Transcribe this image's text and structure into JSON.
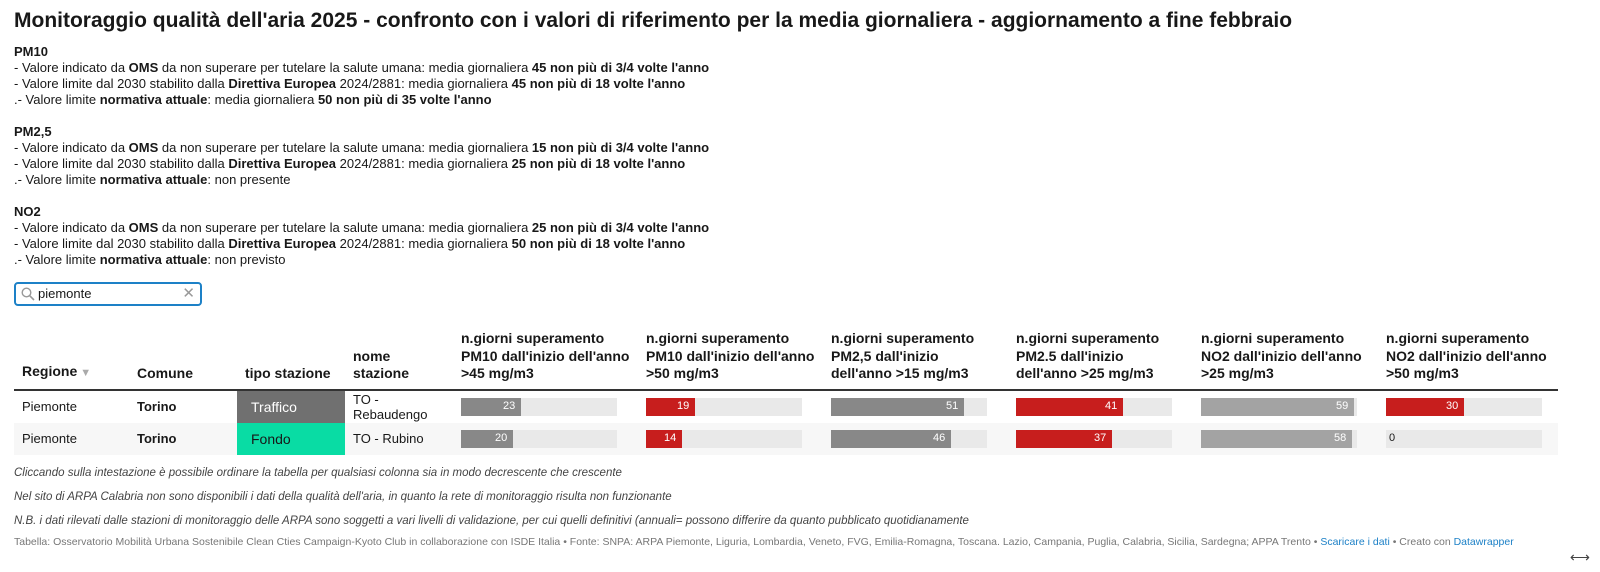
{
  "title": "Monitoraggio qualità dell'aria 2025 - confronto con i valori di riferimento per la media giornaliera - aggiornamento a fine febbraio",
  "intro": [
    {
      "heading": "PM10",
      "lines": [
        {
          "pre": "- Valore indicato da ",
          "b1": "OMS",
          "mid": " da non superare per tutelare la salute umana: media giornaliera ",
          "b2": "45 non più di 3/4 volte l'anno"
        },
        {
          "pre": "- Valore limite dal 2030 stabilito dalla ",
          "b1": "Direttiva Europea",
          "mid": " 2024/2881: media giornaliera ",
          "b2": "45 non più di 18 volte l'anno"
        },
        {
          "pre": ".- Valore limite ",
          "b1": "normativa attuale",
          "mid": ": media giornaliera ",
          "b2": "50 non più di 35 volte l'anno"
        }
      ]
    },
    {
      "heading": "PM2,5",
      "lines": [
        {
          "pre": "- Valore indicato da ",
          "b1": "OMS",
          "mid": " da non superare per tutelare la salute umana: media giornaliera ",
          "b2": "15 non più di 3/4 volte l'anno"
        },
        {
          "pre": "- Valore limite dal 2030 stabilito dalla ",
          "b1": "Direttiva Europea",
          "mid": " 2024/2881: media giornaliera ",
          "b2": "25 non più di 18 volte l'anno"
        },
        {
          "pre": ".- Valore limite ",
          "b1": "normativa attuale",
          "mid": ": non presente",
          "b2": ""
        }
      ]
    },
    {
      "heading": "NO2",
      "lines": [
        {
          "pre": "- Valore indicato da ",
          "b1": "OMS",
          "mid": " da non superare per tutelare la salute umana: media giornaliera ",
          "b2": "25 non più di 3/4 volte l'anno"
        },
        {
          "pre": "- Valore limite dal 2030 stabilito dalla ",
          "b1": "Direttiva Europea",
          "mid": " 2024/2881: media giornaliera ",
          "b2": "50 non più di 18 volte l'anno"
        },
        {
          "pre": ".- Valore limite ",
          "b1": "normativa attuale",
          "mid": ": non previsto",
          "b2": ""
        }
      ]
    }
  ],
  "search": {
    "value": "piemonte",
    "icon": "search-icon",
    "clear_icon": "close-icon"
  },
  "table": {
    "headers": [
      "Regione",
      "Comune",
      "tipo stazione",
      "nome stazione",
      "n.giorni superamento PM10 dall'inizio dell'anno >45 mg/m3",
      "n.giorni superamento PM10 dall'inizio dell'anno >50 mg/m3",
      "n.giorni superamento PM2,5 dall'inizio dell'anno >15 mg/m3",
      "n.giorni superamento PM2.5 dall'inizio dell'anno >25 mg/m3",
      "n.giorni superamento NO2 dall'inizio dell'anno >25 mg/m3",
      "n.giorni superamento NO2 dall'inizio dell'anno >50 mg/m3"
    ],
    "sort_icon": "sort-down-icon",
    "bar_max": 60,
    "bar_colors": [
      "#888888",
      "#c71e1d",
      "#888888",
      "#c71e1d",
      "#a3a3a3",
      "#c71e1d"
    ],
    "rows": [
      {
        "regione": "Piemonte",
        "comune": "Torino",
        "tipo": "Traffico",
        "tipo_color": "#707070",
        "nome": "TO - Rebaudengo",
        "values": [
          23,
          19,
          51,
          41,
          59,
          30
        ]
      },
      {
        "regione": "Piemonte",
        "comune": "Torino",
        "tipo": "Fondo",
        "tipo_color": "#09dca4",
        "nome": "TO - Rubino",
        "values": [
          20,
          14,
          46,
          37,
          58,
          0
        ]
      }
    ]
  },
  "notes": [
    "Cliccando sulla intestazione è possibile ordinare la tabella per qualsiasi colonna sia in modo decrescente che crescente",
    "Nel sito di ARPA Calabria non sono disponibili i dati della qualità dell'aria, in quanto la rete di monitoraggio risulta non funzionante",
    "N.B. i dati rilevati dalle stazioni di monitoraggio delle ARPA sono soggetti a vari livelli di validazione, per cui quelli definitivi (annuali= possono differire da quanto pubblicato quotidianamente"
  ],
  "footer": {
    "source": "Tabella: Osservatorio Mobilità Urbana Sostenibile Clean Cties Campaign-Kyoto Club in collaborazione con ISDE Italia • Fonte: SNPA: ARPA Piemonte, Liguria, Lombardia, Veneto, FVG, Emilia-Romagna, Toscana. Lazio, Campania, Puglia, Calabria, Sicilia, Sardegna; APPA Trento • ",
    "download_link": "Scaricare i dati",
    "created_with": " • Creato con ",
    "dw_link": "Datawrapper"
  },
  "resize_icon": "resize-icon"
}
